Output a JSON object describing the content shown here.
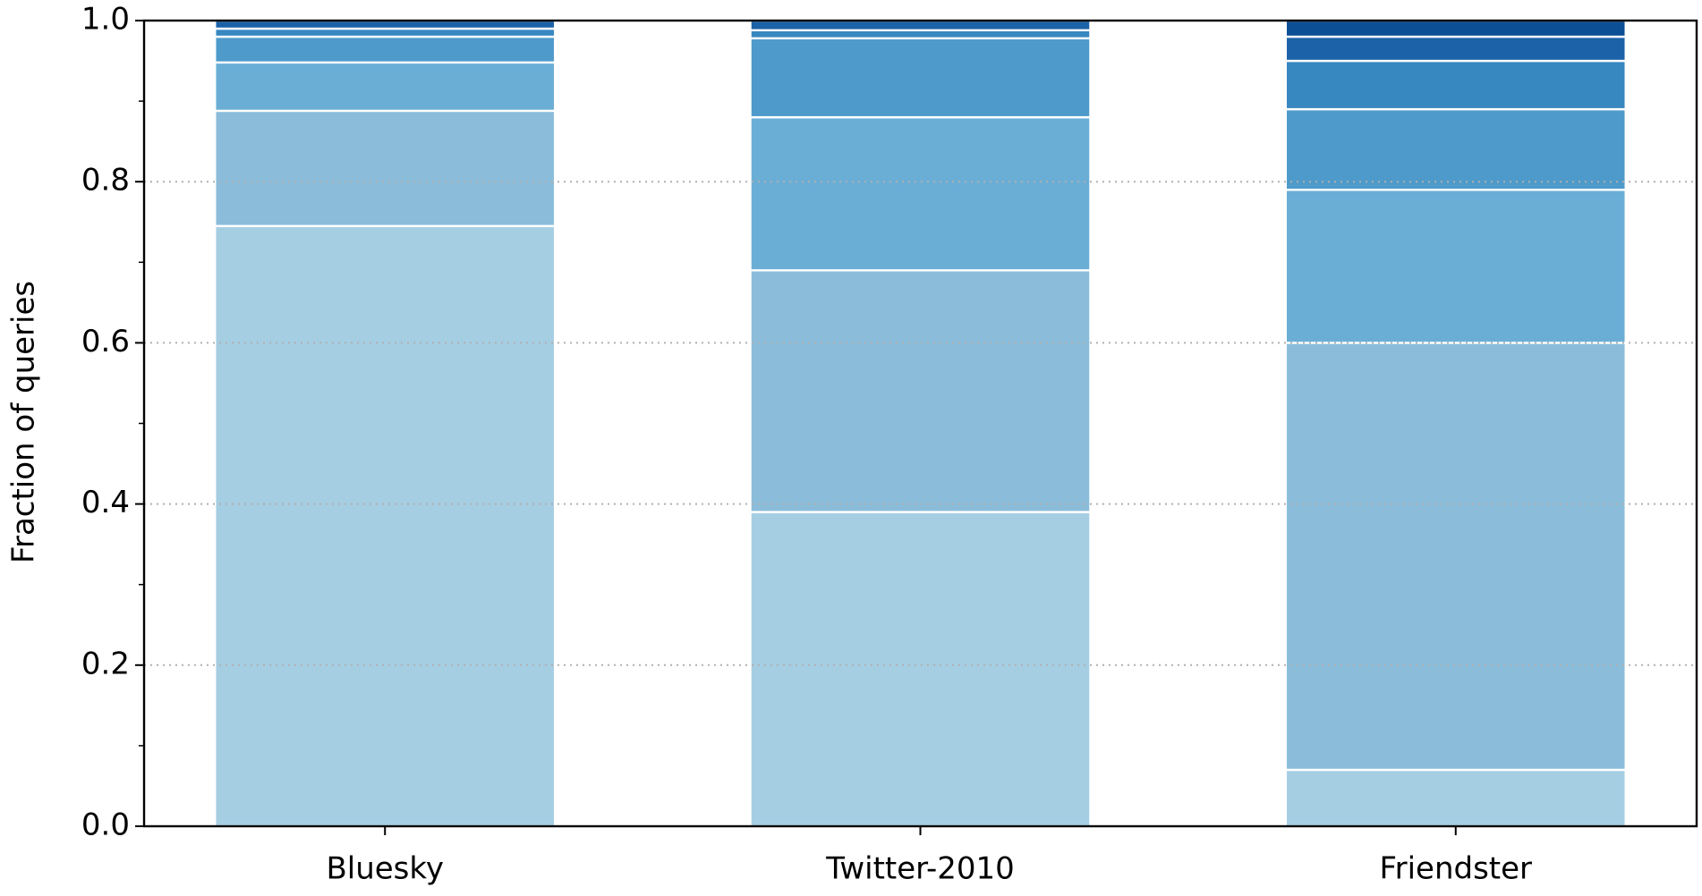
{
  "chart_data": {
    "type": "stacked_bar",
    "ylabel": "Fraction of queries",
    "categories": [
      "Bluesky",
      "Twitter-2010",
      "Friendster"
    ],
    "series": [
      {
        "color": "#a6cee3",
        "values": [
          0.745,
          0.39,
          0.07
        ]
      },
      {
        "color": "#8bbddb",
        "values": [
          0.143,
          0.3,
          0.53
        ]
      },
      {
        "color": "#6aaed6",
        "values": [
          0.06,
          0.19,
          0.19
        ]
      },
      {
        "color": "#4e9acb",
        "values": [
          0.032,
          0.098,
          0.1
        ]
      },
      {
        "color": "#3787c0",
        "values": [
          0.01,
          0.01,
          0.06
        ]
      },
      {
        "color": "#1c62a8",
        "values": [
          0.01,
          0.012,
          0.03
        ]
      },
      {
        "color": "#0d4f94",
        "values": [
          0,
          0,
          0.02
        ]
      }
    ],
    "ylim": [
      0,
      1
    ],
    "yticks": [
      {
        "value": 0,
        "label": "0.0"
      },
      {
        "value": 0.2,
        "label": "0.2"
      },
      {
        "value": 0.4,
        "label": "0.4"
      },
      {
        "value": 0.6,
        "label": "0.6"
      },
      {
        "value": 0.8,
        "label": "0.8"
      },
      {
        "value": 1,
        "label": "1.0"
      }
    ],
    "yminorticks": [
      0.1,
      0.3,
      0.5,
      0.7,
      0.9
    ],
    "grid": true
  }
}
